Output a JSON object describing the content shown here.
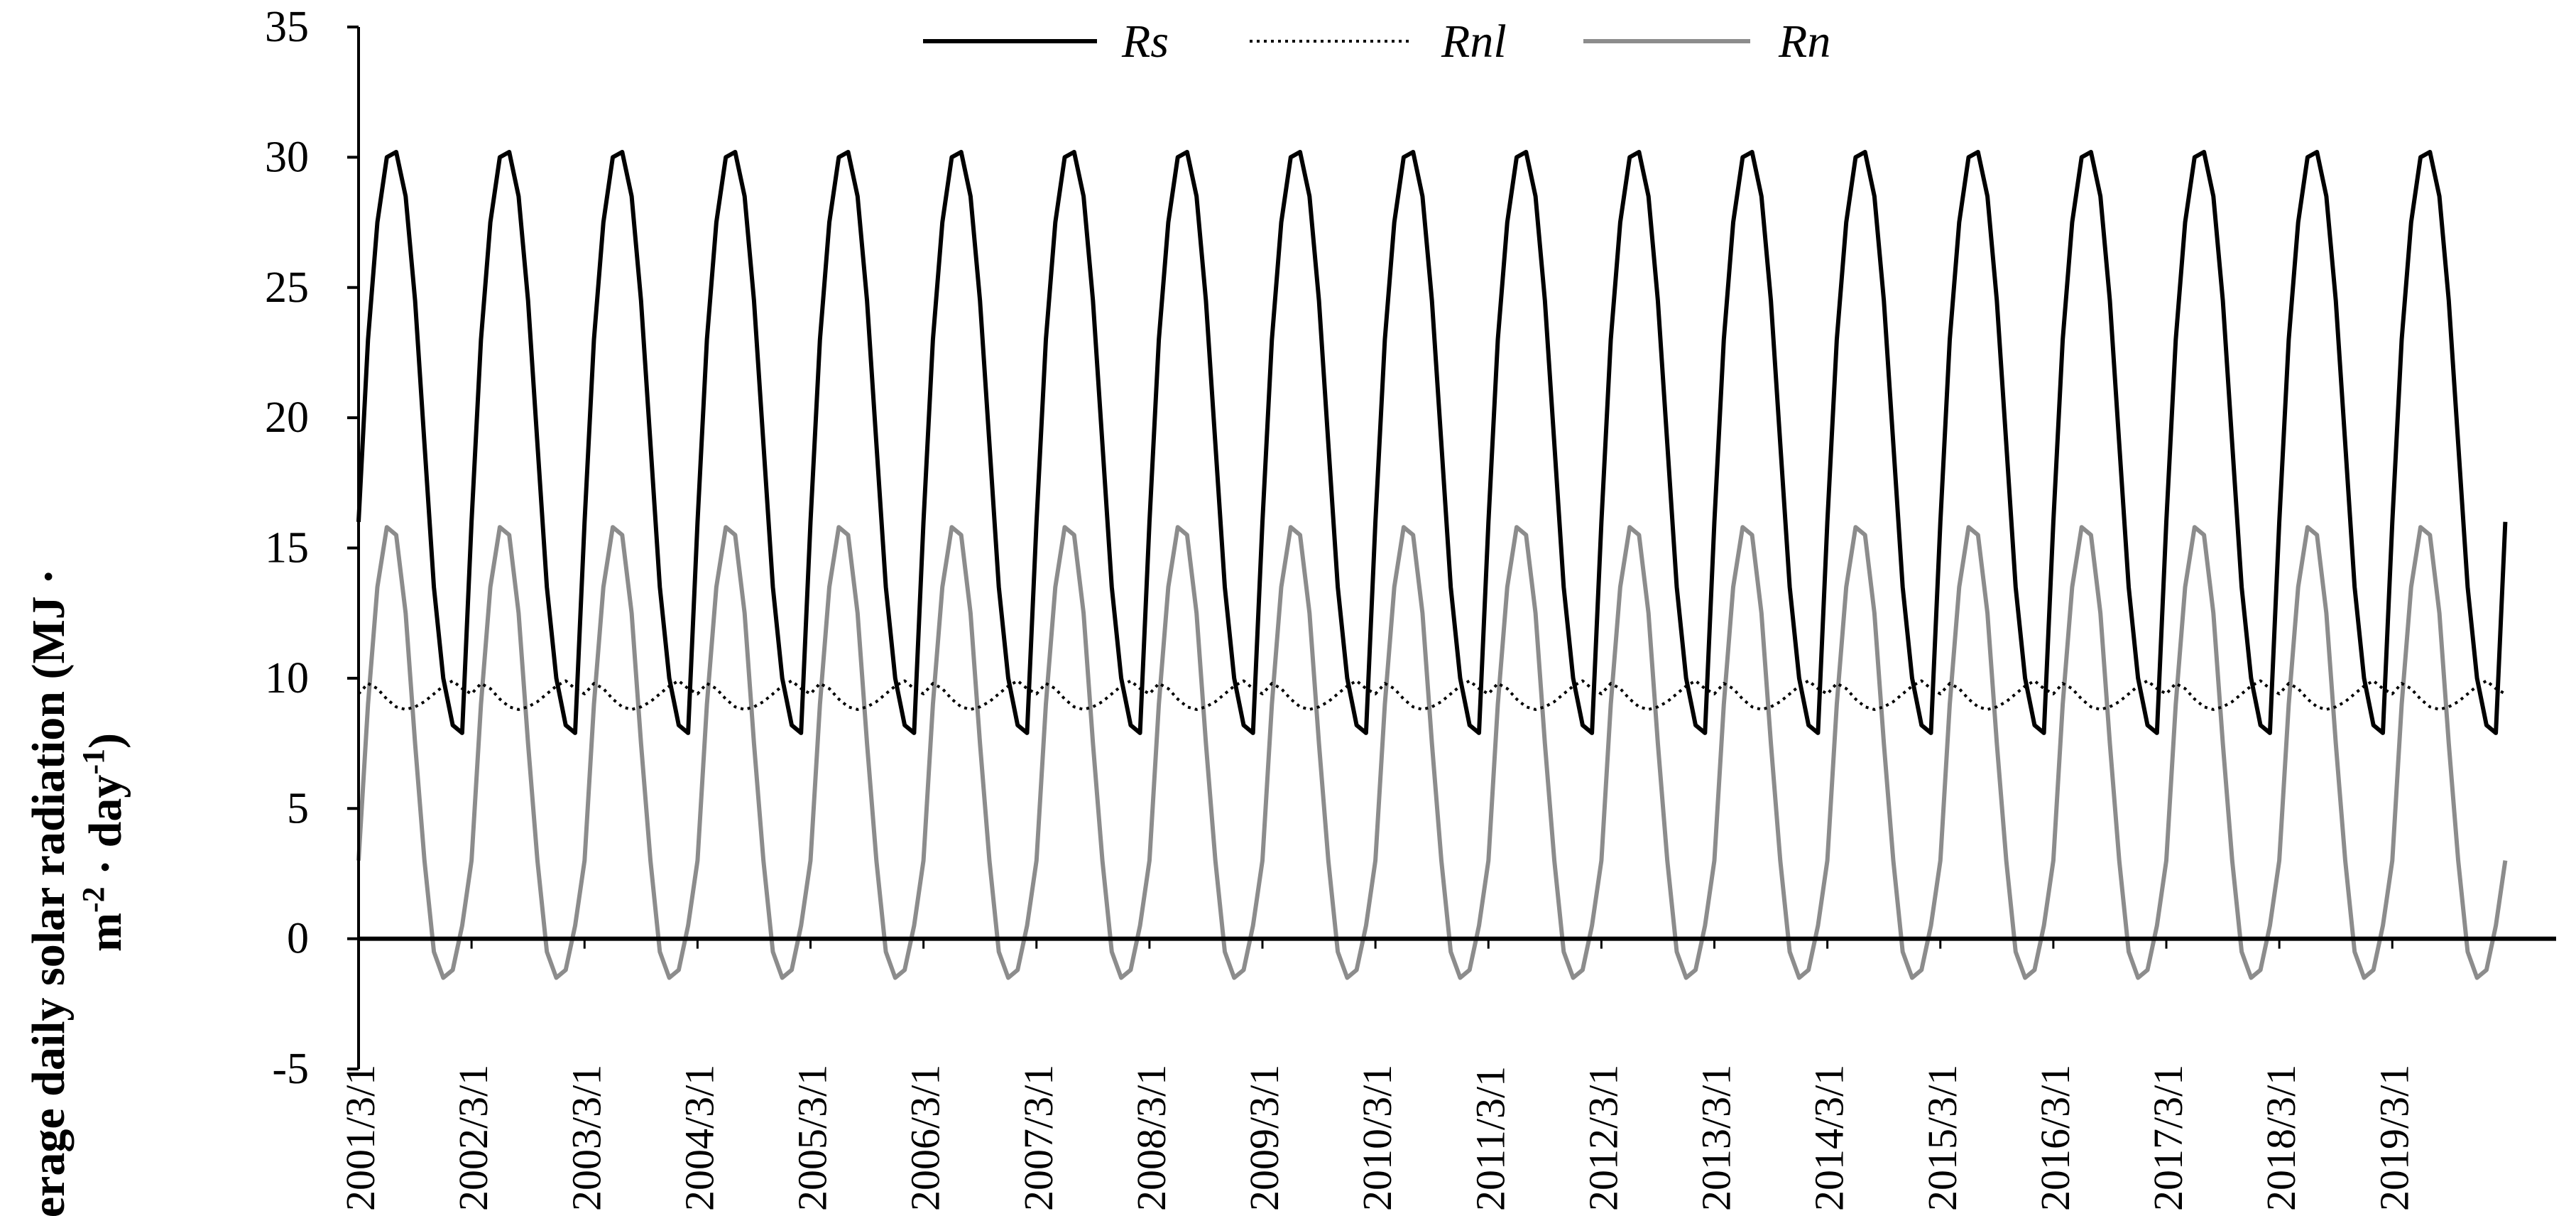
{
  "chart_data": {
    "type": "line",
    "title": "",
    "ylabel_line1": "Average daily solar radiation (MJ ·",
    "ylabel_line2_parts": [
      "m",
      "-2",
      " · day",
      "-1",
      ")"
    ],
    "xlabel": "",
    "ylim": [
      -5,
      35
    ],
    "yticks": [
      -5,
      0,
      5,
      10,
      15,
      20,
      25,
      30,
      35
    ],
    "categories": [
      "2001/3/1",
      "2002/3/1",
      "2003/3/1",
      "2004/3/1",
      "2005/3/1",
      "2006/3/1",
      "2007/3/1",
      "2008/3/1",
      "2009/3/1",
      "2010/3/1",
      "2011/3/1",
      "2012/3/1",
      "2013/3/1",
      "2014/3/1",
      "2015/3/1",
      "2016/3/1",
      "2017/3/1",
      "2018/3/1",
      "2019/3/1"
    ],
    "legend_position": "top-center",
    "gridlines": false,
    "series": [
      {
        "name": "Rs",
        "style": "solid",
        "color": "#000000",
        "pattern": [
          16.0,
          23.0,
          27.5,
          30.0,
          30.2,
          28.5,
          24.5,
          19.0,
          13.5,
          10.0,
          8.2,
          7.9
        ]
      },
      {
        "name": "Rnl",
        "style": "dotted",
        "color": "#000000",
        "pattern": [
          9.4,
          9.8,
          9.6,
          9.2,
          8.9,
          8.8,
          8.9,
          9.1,
          9.4,
          9.7,
          9.9,
          9.6
        ]
      },
      {
        "name": "Rn",
        "style": "solid",
        "color": "#8c8c8c",
        "pattern": [
          3.0,
          9.0,
          13.5,
          15.8,
          15.5,
          12.5,
          7.5,
          3.0,
          -0.5,
          -1.5,
          -1.2,
          0.5
        ]
      }
    ]
  }
}
